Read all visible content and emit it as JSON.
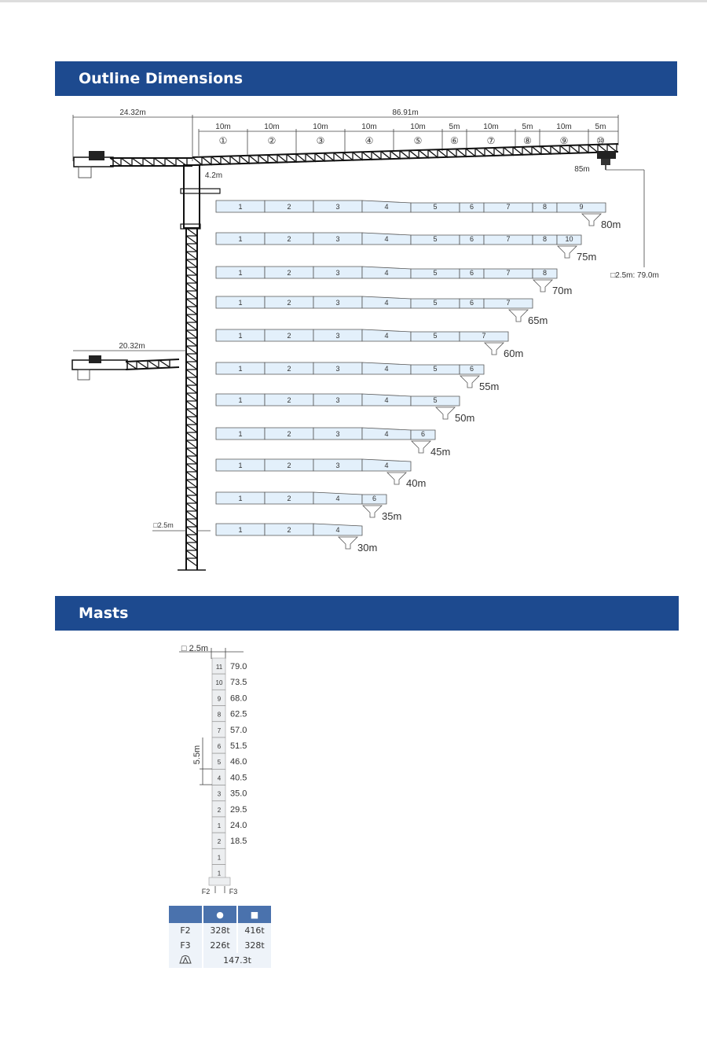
{
  "sections": {
    "outline_title": "Outline Dimensions",
    "masts_title": "Masts"
  },
  "colors": {
    "banner": "#1d4a8f",
    "jib_fill": "#e3f0fb",
    "table_header": "#4a72ad"
  },
  "outline": {
    "counter_jib_length": "24.32m",
    "jib_length": "86.91m",
    "jib_sections": [
      {
        "len": "10m",
        "num": "①"
      },
      {
        "len": "10m",
        "num": "②"
      },
      {
        "len": "10m",
        "num": "③"
      },
      {
        "len": "10m",
        "num": "④"
      },
      {
        "len": "10m",
        "num": "⑤"
      },
      {
        "len": "5m",
        "num": "⑥"
      },
      {
        "len": "10m",
        "num": "⑦"
      },
      {
        "len": "5m",
        "num": "⑧"
      },
      {
        "len": "10m",
        "num": "⑨"
      },
      {
        "len": "5m",
        "num": "⑩"
      }
    ],
    "cab_offset": "4.2m",
    "hook_reach": "85m",
    "mast_height_note": "□2.5m: 79.0m",
    "lower_counter_jib_length": "20.32m",
    "mast_section": "□2.5m",
    "jib_configs": [
      {
        "label": "80m",
        "segments": [
          [
            "1",
            10
          ],
          [
            "2",
            10
          ],
          [
            "3",
            10
          ],
          [
            "4",
            10
          ],
          [
            "5",
            10
          ],
          [
            "6",
            5
          ],
          [
            "7",
            10
          ],
          [
            "8",
            5
          ],
          [
            "9",
            10
          ]
        ]
      },
      {
        "label": "75m",
        "segments": [
          [
            "1",
            10
          ],
          [
            "2",
            10
          ],
          [
            "3",
            10
          ],
          [
            "4",
            10
          ],
          [
            "5",
            10
          ],
          [
            "6",
            5
          ],
          [
            "7",
            10
          ],
          [
            "8",
            5
          ],
          [
            "10",
            5
          ]
        ]
      },
      {
        "label": "70m",
        "segments": [
          [
            "1",
            10
          ],
          [
            "2",
            10
          ],
          [
            "3",
            10
          ],
          [
            "4",
            10
          ],
          [
            "5",
            10
          ],
          [
            "6",
            5
          ],
          [
            "7",
            10
          ],
          [
            "8",
            5
          ]
        ]
      },
      {
        "label": "65m",
        "segments": [
          [
            "1",
            10
          ],
          [
            "2",
            10
          ],
          [
            "3",
            10
          ],
          [
            "4",
            10
          ],
          [
            "5",
            10
          ],
          [
            "6",
            5
          ],
          [
            "7",
            10
          ]
        ]
      },
      {
        "label": "60m",
        "segments": [
          [
            "1",
            10
          ],
          [
            "2",
            10
          ],
          [
            "3",
            10
          ],
          [
            "4",
            10
          ],
          [
            "5",
            10
          ],
          [
            "7",
            10
          ]
        ]
      },
      {
        "label": "55m",
        "segments": [
          [
            "1",
            10
          ],
          [
            "2",
            10
          ],
          [
            "3",
            10
          ],
          [
            "4",
            10
          ],
          [
            "5",
            10
          ],
          [
            "6",
            5
          ]
        ]
      },
      {
        "label": "50m",
        "segments": [
          [
            "1",
            10
          ],
          [
            "2",
            10
          ],
          [
            "3",
            10
          ],
          [
            "4",
            10
          ],
          [
            "5",
            10
          ]
        ]
      },
      {
        "label": "45m",
        "segments": [
          [
            "1",
            10
          ],
          [
            "2",
            10
          ],
          [
            "3",
            10
          ],
          [
            "4",
            10
          ],
          [
            "6",
            5
          ]
        ]
      },
      {
        "label": "40m",
        "segments": [
          [
            "1",
            10
          ],
          [
            "2",
            10
          ],
          [
            "3",
            10
          ],
          [
            "4",
            10
          ]
        ]
      },
      {
        "label": "35m",
        "segments": [
          [
            "1",
            10
          ],
          [
            "2",
            10
          ],
          [
            "4",
            10
          ],
          [
            "6",
            5
          ]
        ]
      },
      {
        "label": "30m",
        "segments": [
          [
            "1",
            10
          ],
          [
            "2",
            10
          ],
          [
            "4",
            10
          ]
        ]
      }
    ]
  },
  "masts": {
    "section_size": "□ 2.5m",
    "section_height": "5.5m",
    "sections": [
      {
        "type": "11",
        "height": "79.0"
      },
      {
        "type": "10",
        "height": "73.5"
      },
      {
        "type": "9",
        "height": "68.0"
      },
      {
        "type": "8",
        "height": "62.5"
      },
      {
        "type": "7",
        "height": "57.0"
      },
      {
        "type": "6",
        "height": "51.5"
      },
      {
        "type": "5",
        "height": "46.0"
      },
      {
        "type": "4",
        "height": "40.5"
      },
      {
        "type": "3",
        "height": "35.0"
      },
      {
        "type": "2",
        "height": "29.5"
      },
      {
        "type": "1",
        "height": "24.0"
      },
      {
        "type": "2",
        "height": "18.5"
      },
      {
        "type": "1",
        "height": ""
      },
      {
        "type": "1",
        "height": ""
      }
    ],
    "force_left": "F2",
    "force_right": "F3",
    "table": {
      "headers": [
        "",
        "●",
        "■"
      ],
      "rows": [
        {
          "label": "F2",
          "values": [
            "328t",
            "416t"
          ]
        },
        {
          "label": "F3",
          "values": [
            "226t",
            "328t"
          ]
        }
      ],
      "weight_icon": "counterweight-icon",
      "weight": "147.3t"
    }
  }
}
